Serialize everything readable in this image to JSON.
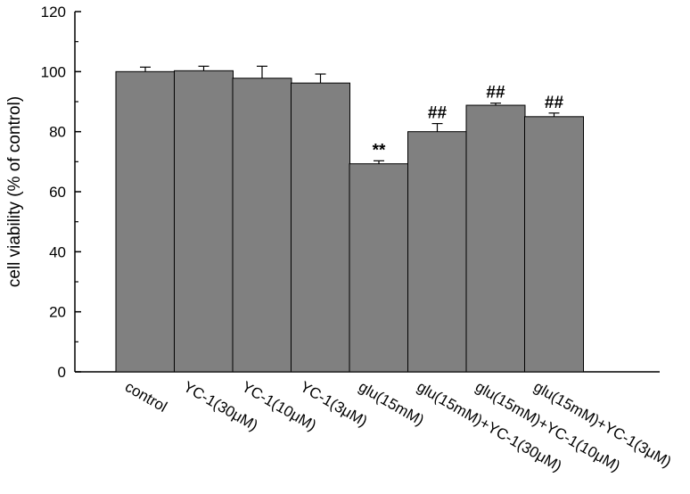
{
  "chart_data": {
    "type": "bar",
    "y_label": "cell viability (% of control)",
    "categories": [
      "control",
      "YC-1(30μM)",
      "YC-1(10μM)",
      "YC-1(3μM)",
      "glu(15mM)",
      "glu(15mM)+YC-1(30μM)",
      "glu(15mM)+YC-1(10μM)",
      "glu(15mM)+YC-1(3μM)"
    ],
    "values": [
      100,
      100.3,
      97.8,
      96.2,
      69.3,
      80,
      88.8,
      85
    ],
    "errors": [
      1.5,
      1.5,
      4,
      3,
      1,
      2.7,
      0.7,
      1.2
    ],
    "color": "#808080",
    "ylim": [
      0,
      120
    ],
    "yticks": [
      0,
      20,
      40,
      60,
      80,
      100,
      120
    ],
    "annotations": [
      {
        "category": "glu(15mM)",
        "text": "**"
      },
      {
        "category": "glu(15mM)+YC-1(30μM)",
        "text": "##"
      },
      {
        "category": "glu(15mM)+YC-1(10μM)",
        "text": "##"
      },
      {
        "category": "glu(15mM)+YC-1(3μM)",
        "text": "##"
      }
    ]
  }
}
